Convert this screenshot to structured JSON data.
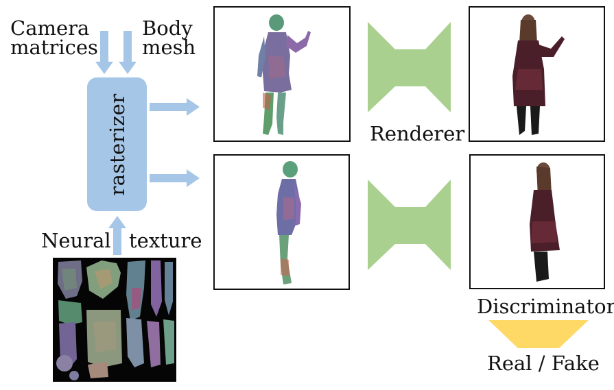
{
  "labels": {
    "camera_line1": "Camera",
    "camera_line2": "matrices",
    "body_line1": "Body",
    "body_line2": "mesh",
    "rasterizer": "rasterizer",
    "neural": "Neural",
    "texture": "texture",
    "renderer": "Renderer",
    "discriminator": "Discriminator",
    "real_fake": "Real / Fake"
  },
  "colors": {
    "arrow": "#a6c6e7",
    "rasterizer_fill": "#a6c6e7",
    "renderer_fill": "#a9d08e",
    "discriminator_fill": "#ffd966",
    "frame_border": "#111111"
  }
}
